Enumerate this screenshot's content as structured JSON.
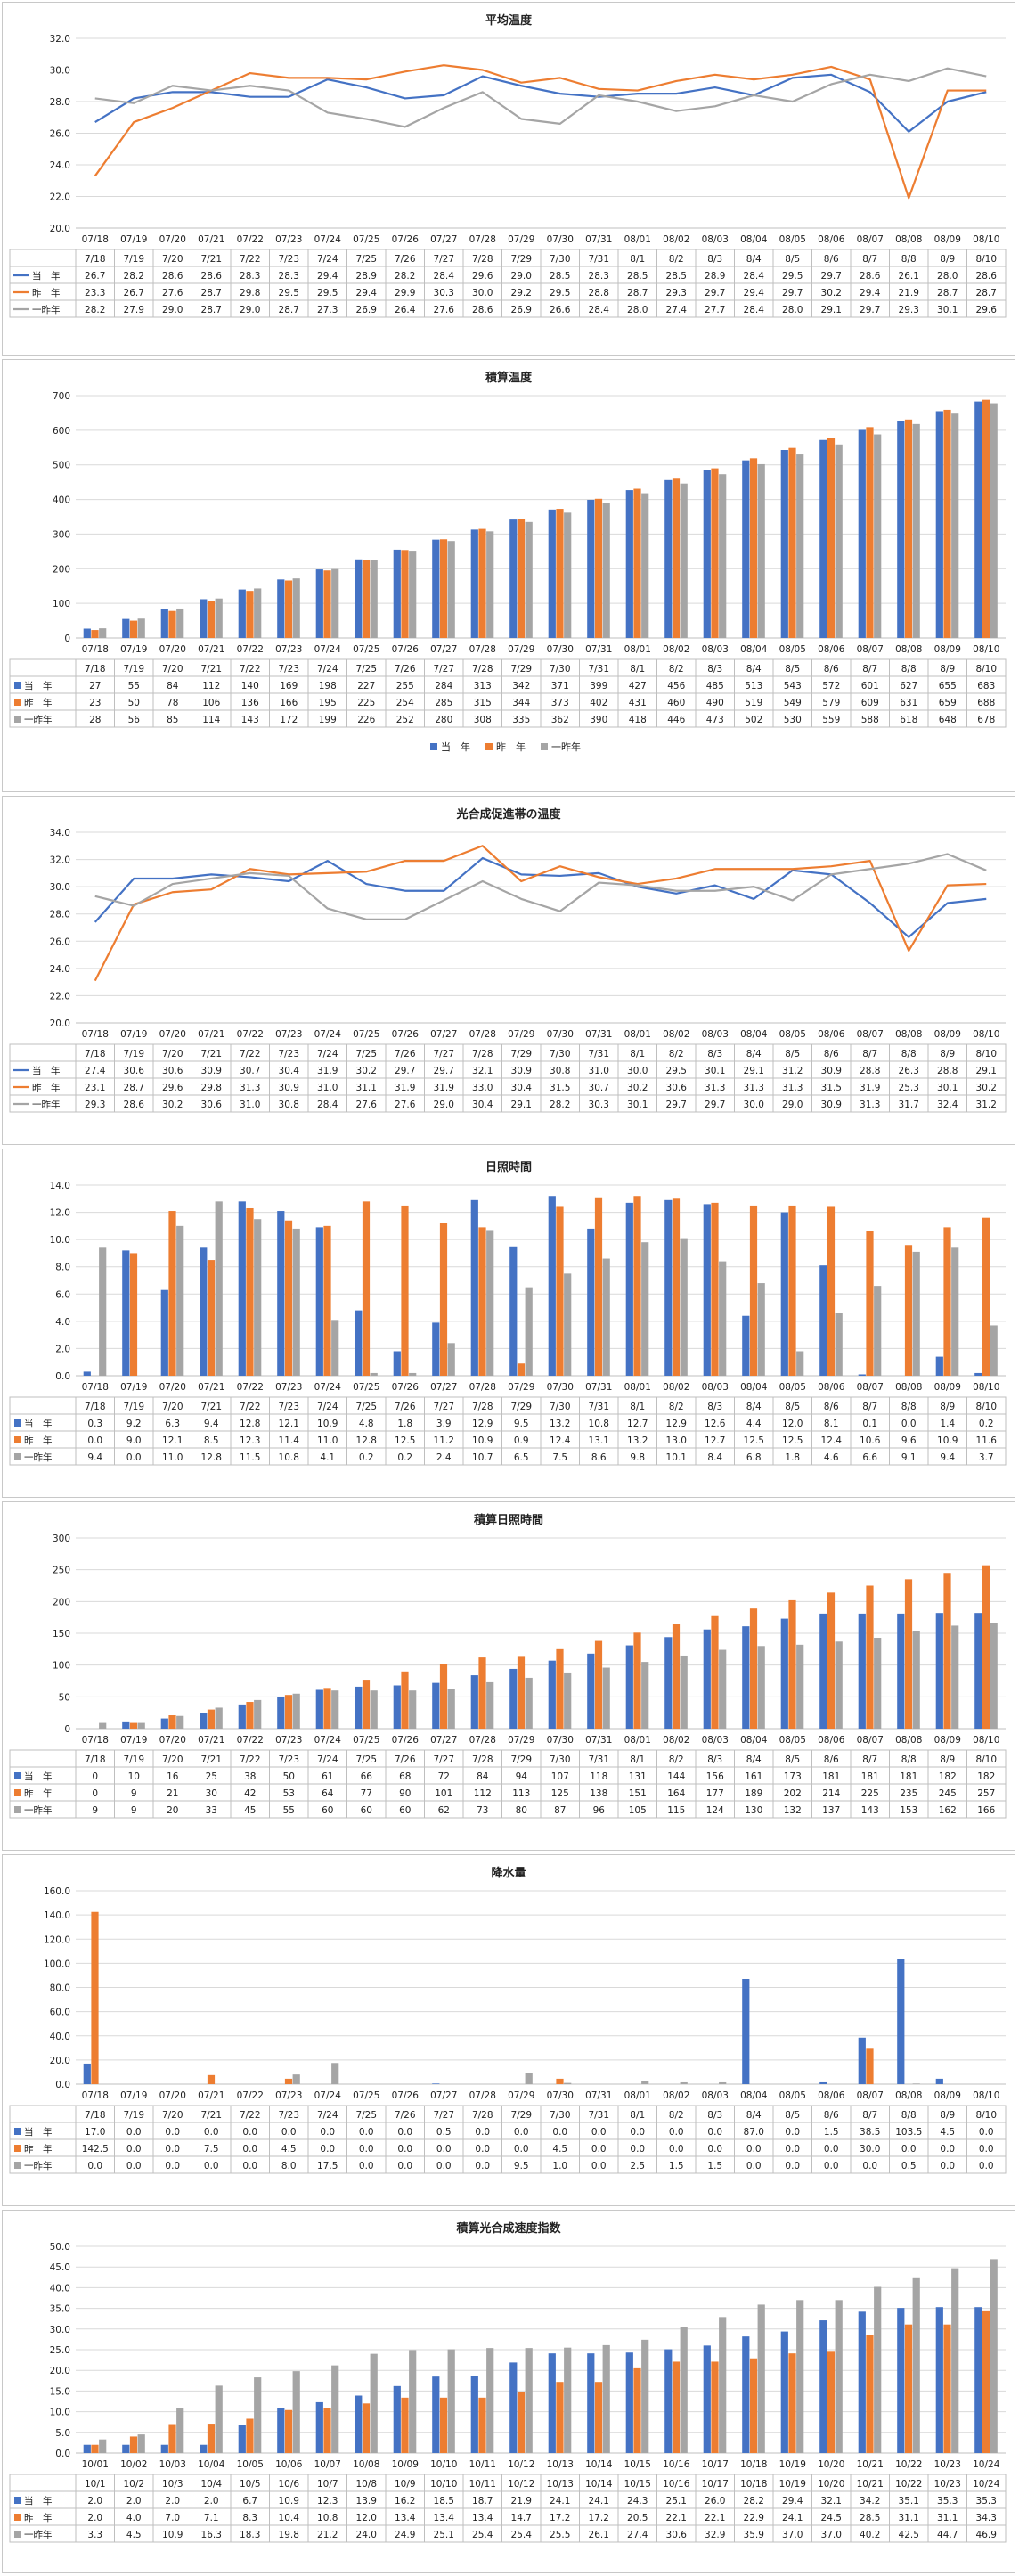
{
  "colors": {
    "current": "#4472c4",
    "prev": "#ed7d31",
    "prev2": "#a5a5a5"
  },
  "legend_short": [
    "当　年",
    "昨　年",
    "一昨年"
  ],
  "chart_data": [
    {
      "type": "line",
      "title": "平均温度",
      "categories": [
        "07/18",
        "07/19",
        "07/20",
        "07/21",
        "07/22",
        "07/23",
        "07/24",
        "07/25",
        "07/26",
        "07/27",
        "07/28",
        "07/29",
        "07/30",
        "07/31",
        "08/01",
        "08/02",
        "08/03",
        "08/04",
        "08/05",
        "08/06",
        "08/07",
        "08/08",
        "08/09",
        "08/10"
      ],
      "table_categories": [
        "7/18",
        "7/19",
        "7/20",
        "7/21",
        "7/22",
        "7/23",
        "7/24",
        "7/25",
        "7/26",
        "7/27",
        "7/28",
        "7/29",
        "7/30",
        "7/31",
        "8/1",
        "8/2",
        "8/3",
        "8/4",
        "8/5",
        "8/6",
        "8/7",
        "8/8",
        "8/9",
        "8/10"
      ],
      "ylim": [
        20.0,
        32.0
      ],
      "yticks": [
        "20.0",
        "22.0",
        "24.0",
        "26.0",
        "28.0",
        "30.0",
        "32.0"
      ],
      "grid": true,
      "series": [
        {
          "name": "当　年",
          "values": [
            26.7,
            28.2,
            28.6,
            28.6,
            28.3,
            28.3,
            29.4,
            28.9,
            28.2,
            28.4,
            29.6,
            29.0,
            28.5,
            28.3,
            28.5,
            28.5,
            28.9,
            28.4,
            29.5,
            29.7,
            28.6,
            26.1,
            28.0,
            28.6
          ]
        },
        {
          "name": "昨　年",
          "values": [
            23.3,
            26.7,
            27.6,
            28.7,
            29.8,
            29.5,
            29.5,
            29.4,
            29.9,
            30.3,
            30.0,
            29.2,
            29.5,
            28.8,
            28.7,
            29.3,
            29.7,
            29.4,
            29.7,
            30.2,
            29.4,
            21.9,
            28.7,
            28.7
          ]
        },
        {
          "name": "一昨年",
          "values": [
            28.2,
            27.9,
            29.0,
            28.7,
            29.0,
            28.7,
            27.3,
            26.9,
            26.4,
            27.6,
            28.6,
            26.9,
            26.6,
            28.4,
            28.0,
            27.4,
            27.7,
            28.4,
            28.0,
            29.1,
            29.7,
            29.3,
            30.1,
            29.6
          ]
        }
      ]
    },
    {
      "type": "bar",
      "title": "積算温度",
      "categories": [
        "07/18",
        "07/19",
        "07/20",
        "07/21",
        "07/22",
        "07/23",
        "07/24",
        "07/25",
        "07/26",
        "07/27",
        "07/28",
        "07/29",
        "07/30",
        "07/31",
        "08/01",
        "08/02",
        "08/03",
        "08/04",
        "08/05",
        "08/06",
        "08/07",
        "08/08",
        "08/09",
        "08/10"
      ],
      "table_categories": [
        "7/18",
        "7/19",
        "7/20",
        "7/21",
        "7/22",
        "7/23",
        "7/24",
        "7/25",
        "7/26",
        "7/27",
        "7/28",
        "7/29",
        "7/30",
        "7/31",
        "8/1",
        "8/2",
        "8/3",
        "8/4",
        "8/5",
        "8/6",
        "8/7",
        "8/8",
        "8/9",
        "8/10"
      ],
      "ylim": [
        0,
        700
      ],
      "yticks": [
        "0",
        "100",
        "200",
        "300",
        "400",
        "500",
        "600",
        "700"
      ],
      "grid": true,
      "legend": "bottom-center",
      "series": [
        {
          "name": "当　年",
          "values": [
            27,
            55,
            84,
            112,
            140,
            169,
            198,
            227,
            255,
            284,
            313,
            342,
            371,
            399,
            427,
            456,
            485,
            513,
            543,
            572,
            601,
            627,
            655,
            683
          ]
        },
        {
          "name": "昨　年",
          "values": [
            23,
            50,
            78,
            106,
            136,
            166,
            195,
            225,
            254,
            285,
            315,
            344,
            373,
            402,
            431,
            460,
            490,
            519,
            549,
            579,
            609,
            631,
            659,
            688
          ]
        },
        {
          "name": "一昨年",
          "values": [
            28,
            56,
            85,
            114,
            143,
            172,
            199,
            226,
            252,
            280,
            308,
            335,
            362,
            390,
            418,
            446,
            473,
            502,
            530,
            559,
            588,
            618,
            648,
            678
          ]
        }
      ]
    },
    {
      "type": "line",
      "title": "光合成促進帯の温度",
      "categories": [
        "07/18",
        "07/19",
        "07/20",
        "07/21",
        "07/22",
        "07/23",
        "07/24",
        "07/25",
        "07/26",
        "07/27",
        "07/28",
        "07/29",
        "07/30",
        "07/31",
        "08/01",
        "08/02",
        "08/03",
        "08/04",
        "08/05",
        "08/06",
        "08/07",
        "08/08",
        "08/09",
        "08/10"
      ],
      "table_categories": [
        "7/18",
        "7/19",
        "7/20",
        "7/21",
        "7/22",
        "7/23",
        "7/24",
        "7/25",
        "7/26",
        "7/27",
        "7/28",
        "7/29",
        "7/30",
        "7/31",
        "8/1",
        "8/2",
        "8/3",
        "8/4",
        "8/5",
        "8/6",
        "8/7",
        "8/8",
        "8/9",
        "8/10"
      ],
      "ylim": [
        20.0,
        34.0
      ],
      "yticks": [
        "20.0",
        "22.0",
        "24.0",
        "26.0",
        "28.0",
        "30.0",
        "32.0",
        "34.0"
      ],
      "grid": true,
      "series": [
        {
          "name": "当　年",
          "values": [
            27.4,
            30.6,
            30.6,
            30.9,
            30.7,
            30.4,
            31.9,
            30.2,
            29.7,
            29.7,
            32.1,
            30.9,
            30.8,
            31.0,
            30.0,
            29.5,
            30.1,
            29.1,
            31.2,
            30.9,
            28.8,
            26.3,
            28.8,
            29.1
          ]
        },
        {
          "name": "昨　年",
          "values": [
            23.1,
            28.7,
            29.6,
            29.8,
            31.3,
            30.9,
            31.0,
            31.1,
            31.9,
            31.9,
            33.0,
            30.4,
            31.5,
            30.7,
            30.2,
            30.6,
            31.3,
            31.3,
            31.3,
            31.5,
            31.9,
            25.3,
            30.1,
            30.2
          ]
        },
        {
          "name": "一昨年",
          "values": [
            29.3,
            28.6,
            30.2,
            30.6,
            31.0,
            30.8,
            28.4,
            27.6,
            27.6,
            29.0,
            30.4,
            29.1,
            28.2,
            30.3,
            30.1,
            29.7,
            29.7,
            30.0,
            29.0,
            30.9,
            31.3,
            31.7,
            32.4,
            31.2
          ]
        }
      ]
    },
    {
      "type": "bar",
      "title": "日照時間",
      "categories": [
        "07/18",
        "07/19",
        "07/20",
        "07/21",
        "07/22",
        "07/23",
        "07/24",
        "07/25",
        "07/26",
        "07/27",
        "07/28",
        "07/29",
        "07/30",
        "07/31",
        "08/01",
        "08/02",
        "08/03",
        "08/04",
        "08/05",
        "08/06",
        "08/07",
        "08/08",
        "08/09",
        "08/10"
      ],
      "table_categories": [
        "7/18",
        "7/19",
        "7/20",
        "7/21",
        "7/22",
        "7/23",
        "7/24",
        "7/25",
        "7/26",
        "7/27",
        "7/28",
        "7/29",
        "7/30",
        "7/31",
        "8/1",
        "8/2",
        "8/3",
        "8/4",
        "8/5",
        "8/6",
        "8/7",
        "8/8",
        "8/9",
        "8/10"
      ],
      "ylim": [
        0.0,
        14.0
      ],
      "yticks": [
        "0.0",
        "2.0",
        "4.0",
        "6.0",
        "8.0",
        "10.0",
        "12.0",
        "14.0"
      ],
      "grid": true,
      "series": [
        {
          "name": "当　年",
          "values": [
            0.3,
            9.2,
            6.3,
            9.4,
            12.8,
            12.1,
            10.9,
            4.8,
            1.8,
            3.9,
            12.9,
            9.5,
            13.2,
            10.8,
            12.7,
            12.9,
            12.6,
            4.4,
            12.0,
            8.1,
            0.1,
            0.0,
            1.4,
            0.2
          ]
        },
        {
          "name": "昨　年",
          "values": [
            0.0,
            9.0,
            12.1,
            8.5,
            12.3,
            11.4,
            11.0,
            12.8,
            12.5,
            11.2,
            10.9,
            0.9,
            12.4,
            13.1,
            13.2,
            13.0,
            12.7,
            12.5,
            12.5,
            12.4,
            10.6,
            9.6,
            10.9,
            11.6
          ]
        },
        {
          "name": "一昨年",
          "values": [
            9.4,
            0.0,
            11.0,
            12.8,
            11.5,
            10.8,
            4.1,
            0.2,
            0.2,
            2.4,
            10.7,
            6.5,
            7.5,
            8.6,
            9.8,
            10.1,
            8.4,
            6.8,
            1.8,
            4.6,
            6.6,
            9.1,
            9.4,
            3.7
          ]
        }
      ]
    },
    {
      "type": "bar",
      "title": "積算日照時間",
      "categories": [
        "07/18",
        "07/19",
        "07/20",
        "07/21",
        "07/22",
        "07/23",
        "07/24",
        "07/25",
        "07/26",
        "07/27",
        "07/28",
        "07/29",
        "07/30",
        "07/31",
        "08/01",
        "08/02",
        "08/03",
        "08/04",
        "08/05",
        "08/06",
        "08/07",
        "08/08",
        "08/09",
        "08/10"
      ],
      "table_categories": [
        "7/18",
        "7/19",
        "7/20",
        "7/21",
        "7/22",
        "7/23",
        "7/24",
        "7/25",
        "7/26",
        "7/27",
        "7/28",
        "7/29",
        "7/30",
        "7/31",
        "8/1",
        "8/2",
        "8/3",
        "8/4",
        "8/5",
        "8/6",
        "8/7",
        "8/8",
        "8/9",
        "8/10"
      ],
      "ylim": [
        0,
        300
      ],
      "yticks": [
        "0",
        "50",
        "100",
        "150",
        "200",
        "250",
        "300"
      ],
      "grid": true,
      "series": [
        {
          "name": "当　年",
          "values": [
            0,
            10,
            16,
            25,
            38,
            50,
            61,
            66,
            68,
            72,
            84,
            94,
            107,
            118,
            131,
            144,
            156,
            161,
            173,
            181,
            181,
            181,
            182,
            182
          ]
        },
        {
          "name": "昨　年",
          "values": [
            0,
            9,
            21,
            30,
            42,
            53,
            64,
            77,
            90,
            101,
            112,
            113,
            125,
            138,
            151,
            164,
            177,
            189,
            202,
            214,
            225,
            235,
            245,
            257
          ]
        },
        {
          "name": "一昨年",
          "values": [
            9,
            9,
            20,
            33,
            45,
            55,
            60,
            60,
            60,
            62,
            73,
            80,
            87,
            96,
            105,
            115,
            124,
            130,
            132,
            137,
            143,
            153,
            162,
            166
          ]
        }
      ]
    },
    {
      "type": "bar",
      "title": "降水量",
      "categories": [
        "07/18",
        "07/19",
        "07/20",
        "07/21",
        "07/22",
        "07/23",
        "07/24",
        "07/25",
        "07/26",
        "07/27",
        "07/28",
        "07/29",
        "07/30",
        "07/31",
        "08/01",
        "08/02",
        "08/03",
        "08/04",
        "08/05",
        "08/06",
        "08/07",
        "08/08",
        "08/09",
        "08/10"
      ],
      "table_categories": [
        "7/18",
        "7/19",
        "7/20",
        "7/21",
        "7/22",
        "7/23",
        "7/24",
        "7/25",
        "7/26",
        "7/27",
        "7/28",
        "7/29",
        "7/30",
        "7/31",
        "8/1",
        "8/2",
        "8/3",
        "8/4",
        "8/5",
        "8/6",
        "8/7",
        "8/8",
        "8/9",
        "8/10"
      ],
      "ylim": [
        0.0,
        160.0
      ],
      "yticks": [
        "0.0",
        "20.0",
        "40.0",
        "60.0",
        "80.0",
        "100.0",
        "120.0",
        "140.0",
        "160.0"
      ],
      "grid": true,
      "series": [
        {
          "name": "当　年",
          "values": [
            17.0,
            0.0,
            0.0,
            0.0,
            0.0,
            0.0,
            0.0,
            0.0,
            0.0,
            0.5,
            0.0,
            0.0,
            0.0,
            0.0,
            0.0,
            0.0,
            0.0,
            87.0,
            0.0,
            1.5,
            38.5,
            103.5,
            4.5,
            0.0
          ]
        },
        {
          "name": "昨　年",
          "values": [
            142.5,
            0.0,
            0.0,
            7.5,
            0.0,
            4.5,
            0.0,
            0.0,
            0.0,
            0.0,
            0.0,
            0.0,
            4.5,
            0.0,
            0.0,
            0.0,
            0.0,
            0.0,
            0.0,
            0.0,
            30.0,
            0.0,
            0.0,
            0.0
          ]
        },
        {
          "name": "一昨年",
          "values": [
            0.0,
            0.0,
            0.0,
            0.0,
            0.0,
            8.0,
            17.5,
            0.0,
            0.0,
            0.0,
            0.0,
            9.5,
            1.0,
            0.0,
            2.5,
            1.5,
            1.5,
            0.0,
            0.0,
            0.0,
            0.0,
            0.5,
            0.0,
            0.0
          ]
        }
      ]
    },
    {
      "type": "bar",
      "title": "積算光合成速度指数",
      "categories": [
        "10/01",
        "10/02",
        "10/03",
        "10/04",
        "10/05",
        "10/06",
        "10/07",
        "10/08",
        "10/09",
        "10/10",
        "10/11",
        "10/12",
        "10/13",
        "10/14",
        "10/15",
        "10/16",
        "10/17",
        "10/18",
        "10/19",
        "10/20",
        "10/21",
        "10/22",
        "10/23",
        "10/24"
      ],
      "table_categories": [
        "10/1",
        "10/2",
        "10/3",
        "10/4",
        "10/5",
        "10/6",
        "10/7",
        "10/8",
        "10/9",
        "10/10",
        "10/11",
        "10/12",
        "10/13",
        "10/14",
        "10/15",
        "10/16",
        "10/17",
        "10/18",
        "10/19",
        "10/20",
        "10/21",
        "10/22",
        "10/23",
        "10/24"
      ],
      "ylim": [
        0.0,
        50.0
      ],
      "yticks": [
        "0.0",
        "5.0",
        "10.0",
        "15.0",
        "20.0",
        "25.0",
        "30.0",
        "35.0",
        "40.0",
        "45.0",
        "50.0"
      ],
      "grid": true,
      "series": [
        {
          "name": "当　年",
          "values": [
            2.0,
            2.0,
            2.0,
            2.0,
            6.7,
            10.9,
            12.3,
            13.9,
            16.2,
            18.5,
            18.7,
            21.9,
            24.1,
            24.1,
            24.3,
            25.1,
            26.0,
            28.2,
            29.4,
            32.1,
            34.2,
            35.1,
            35.3,
            35.3
          ]
        },
        {
          "name": "昨　年",
          "values": [
            2.0,
            4.0,
            7.0,
            7.1,
            8.3,
            10.4,
            10.8,
            12.0,
            13.4,
            13.4,
            13.4,
            14.7,
            17.2,
            17.2,
            20.5,
            22.1,
            22.1,
            22.9,
            24.1,
            24.5,
            28.5,
            31.1,
            31.1,
            34.3
          ]
        },
        {
          "name": "一昨年",
          "values": [
            3.3,
            4.5,
            10.9,
            16.3,
            18.3,
            19.8,
            21.2,
            24.0,
            24.9,
            25.1,
            25.4,
            25.4,
            25.5,
            26.1,
            27.4,
            30.6,
            32.9,
            35.9,
            37.0,
            37.0,
            40.2,
            42.5,
            44.7,
            46.9
          ]
        }
      ]
    }
  ]
}
